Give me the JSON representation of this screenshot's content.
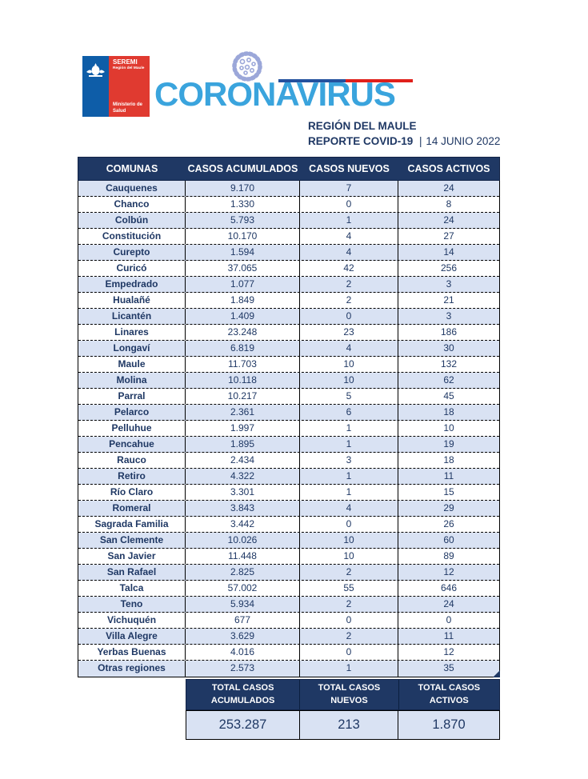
{
  "header": {
    "logo": {
      "seremi": "SEREMI",
      "region": "Región del Maule",
      "ministry_line1": "Ministerio de",
      "ministry_line2": "Salud"
    },
    "brand": "CORONAVIRUS",
    "region_title": "REGIÓN DEL MAULE",
    "report_label": "REPORTE COVID-19",
    "report_separator": "|",
    "report_date": "14 JUNIO 2022",
    "colors": {
      "navy": "#1F3864",
      "row_light_blue": "#D9E2F3",
      "brand_blue": "#3AA4DD",
      "logo_blue": "#0E5DA8",
      "logo_red": "#E03A30",
      "line_blue": "#24519E",
      "line_red": "#E0201B",
      "virus_icon": "#9BA7D9"
    }
  },
  "table": {
    "columns": [
      "COMUNAS",
      "CASOS ACUMULADOS",
      "CASOS NUEVOS",
      "CASOS ACTIVOS"
    ],
    "rows": [
      {
        "comuna": "Cauquenes",
        "acumulados": "9.170",
        "nuevos": "7",
        "activos": "24"
      },
      {
        "comuna": "Chanco",
        "acumulados": "1.330",
        "nuevos": "0",
        "activos": "8"
      },
      {
        "comuna": "Colbún",
        "acumulados": "5.793",
        "nuevos": "1",
        "activos": "24"
      },
      {
        "comuna": "Constitución",
        "acumulados": "10.170",
        "nuevos": "4",
        "activos": "27"
      },
      {
        "comuna": "Curepto",
        "acumulados": "1.594",
        "nuevos": "4",
        "activos": "14"
      },
      {
        "comuna": "Curicó",
        "acumulados": "37.065",
        "nuevos": "42",
        "activos": "256"
      },
      {
        "comuna": "Empedrado",
        "acumulados": "1.077",
        "nuevos": "2",
        "activos": "3"
      },
      {
        "comuna": "Hualañé",
        "acumulados": "1.849",
        "nuevos": "2",
        "activos": "21"
      },
      {
        "comuna": "Licantén",
        "acumulados": "1.409",
        "nuevos": "0",
        "activos": "3"
      },
      {
        "comuna": "Linares",
        "acumulados": "23.248",
        "nuevos": "23",
        "activos": "186"
      },
      {
        "comuna": "Longaví",
        "acumulados": "6.819",
        "nuevos": "4",
        "activos": "30"
      },
      {
        "comuna": "Maule",
        "acumulados": "11.703",
        "nuevos": "10",
        "activos": "132"
      },
      {
        "comuna": "Molina",
        "acumulados": "10.118",
        "nuevos": "10",
        "activos": "62"
      },
      {
        "comuna": "Parral",
        "acumulados": "10.217",
        "nuevos": "5",
        "activos": "45"
      },
      {
        "comuna": "Pelarco",
        "acumulados": "2.361",
        "nuevos": "6",
        "activos": "18"
      },
      {
        "comuna": "Pelluhue",
        "acumulados": "1.997",
        "nuevos": "1",
        "activos": "10"
      },
      {
        "comuna": "Pencahue",
        "acumulados": "1.895",
        "nuevos": "1",
        "activos": "19"
      },
      {
        "comuna": "Rauco",
        "acumulados": "2.434",
        "nuevos": "3",
        "activos": "18"
      },
      {
        "comuna": "Retiro",
        "acumulados": "4.322",
        "nuevos": "1",
        "activos": "11"
      },
      {
        "comuna": "Río Claro",
        "acumulados": "3.301",
        "nuevos": "1",
        "activos": "15"
      },
      {
        "comuna": "Romeral",
        "acumulados": "3.843",
        "nuevos": "4",
        "activos": "29"
      },
      {
        "comuna": "Sagrada Familia",
        "acumulados": "3.442",
        "nuevos": "0",
        "activos": "26"
      },
      {
        "comuna": "San Clemente",
        "acumulados": "10.026",
        "nuevos": "10",
        "activos": "60"
      },
      {
        "comuna": "San Javier",
        "acumulados": "11.448",
        "nuevos": "10",
        "activos": "89"
      },
      {
        "comuna": "San Rafael",
        "acumulados": "2.825",
        "nuevos": "2",
        "activos": "12"
      },
      {
        "comuna": "Talca",
        "acumulados": "57.002",
        "nuevos": "55",
        "activos": "646"
      },
      {
        "comuna": "Teno",
        "acumulados": "5.934",
        "nuevos": "2",
        "activos": "24"
      },
      {
        "comuna": "Vichuquén",
        "acumulados": "677",
        "nuevos": "0",
        "activos": "0"
      },
      {
        "comuna": "Villa Alegre",
        "acumulados": "3.629",
        "nuevos": "2",
        "activos": "11"
      },
      {
        "comuna": "Yerbas Buenas",
        "acumulados": "4.016",
        "nuevos": "0",
        "activos": "12"
      },
      {
        "comuna": "Otras regiones",
        "acumulados": "2.573",
        "nuevos": "1",
        "activos": "35"
      }
    ]
  },
  "totals": {
    "items": [
      {
        "label_line1": "TOTAL CASOS",
        "label_line2": "ACUMULADOS",
        "value": "253.287"
      },
      {
        "label_line1": "TOTAL CASOS",
        "label_line2": "NUEVOS",
        "value": "213"
      },
      {
        "label_line1": "TOTAL CASOS",
        "label_line2": "ACTIVOS",
        "value": "1.870"
      }
    ]
  }
}
